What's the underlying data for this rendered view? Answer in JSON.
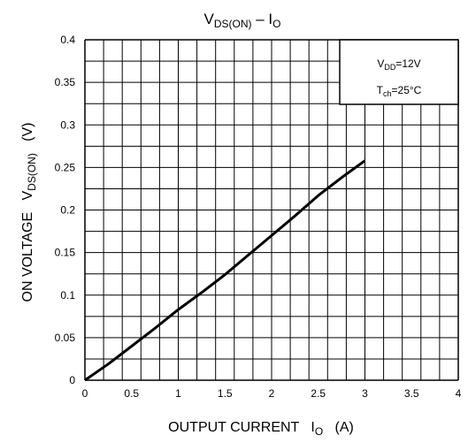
{
  "chart_data": {
    "type": "line",
    "title": {
      "main": "V",
      "sub": "DS(ON)",
      "rest": " – I",
      "sub2": "O"
    },
    "xlabel": {
      "main": "OUTPUT CURRENT   I",
      "sub": "O",
      "rest": "   (A)"
    },
    "ylabel": {
      "main": "ON VOLTAGE   V",
      "sub": "DS(ON)",
      "rest": "   (V)"
    },
    "xlim": [
      0,
      4
    ],
    "ylim": [
      0,
      0.4
    ],
    "x_ticks": [
      "0",
      "0.5",
      "1",
      "1.5",
      "2",
      "2.5",
      "3",
      "3.5",
      "4"
    ],
    "y_ticks": [
      "0",
      "0.05",
      "0.1",
      "0.15",
      "0.2",
      "0.25",
      "0.3",
      "0.35",
      "0.4"
    ],
    "grid": true,
    "legend_box": [
      {
        "main": "V",
        "sub": "DD",
        "rest": "=12V"
      },
      {
        "main": "T",
        "sub": "ch",
        "rest": "=25°C"
      }
    ],
    "series": [
      {
        "x": [
          0,
          0.25,
          0.5,
          0.75,
          1.0,
          1.25,
          1.5,
          1.75,
          2.0,
          2.25,
          2.5,
          2.75,
          3.0
        ],
        "y": [
          0,
          0.019,
          0.04,
          0.061,
          0.083,
          0.103,
          0.124,
          0.147,
          0.17,
          0.193,
          0.217,
          0.238,
          0.258
        ]
      }
    ]
  }
}
